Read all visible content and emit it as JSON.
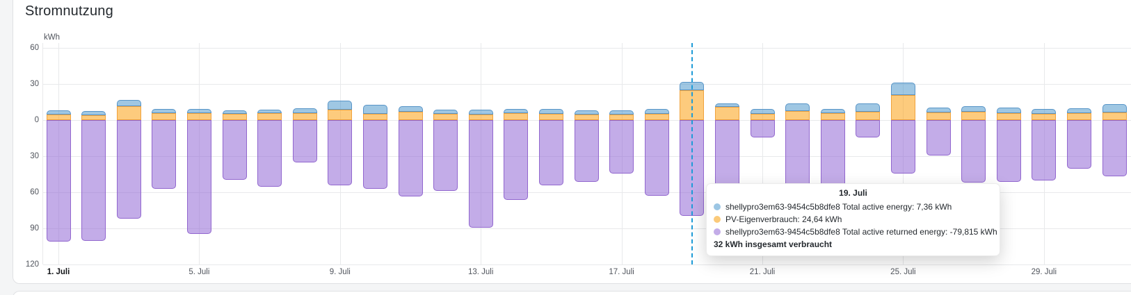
{
  "panel": {
    "title": "Stromnutzung"
  },
  "colors": {
    "page_background": "#f4f5f6",
    "panel_background": "#ffffff",
    "grid": "#e8e9eb",
    "crosshair": "#1e9bd7",
    "series_blue_fill": "#9fc7e3",
    "series_blue_border": "#5794c7",
    "series_orange_fill": "#fdcb7d",
    "series_orange_border": "#f0a23c",
    "series_purple_fill": "#c3ace8",
    "series_purple_border": "#9166ce"
  },
  "chart_data": {
    "type": "bar",
    "stacked": true,
    "title": "Stromnutzung",
    "ylabel": "kWh",
    "ylim": [
      -120,
      60
    ],
    "grid": true,
    "legend_position": "tooltip-only",
    "y_axis": {
      "unit": "kWh",
      "ticks": [
        60,
        30,
        0,
        -30,
        -60,
        -90,
        -120
      ],
      "tick_labels": [
        "60",
        "30",
        "0",
        "30",
        "60",
        "90",
        "120"
      ]
    },
    "x_axis": {
      "tick_days": [
        1,
        5,
        9,
        13,
        17,
        21,
        25,
        29
      ],
      "tick_labels": [
        "1. Juli",
        "5. Juli",
        "9. Juli",
        "13. Juli",
        "17. Juli",
        "21. Juli",
        "25. Juli",
        "29. Juli"
      ],
      "bold_ticks": [
        1
      ]
    },
    "categories": [
      "1. Juli",
      "2. Juli",
      "3. Juli",
      "4. Juli",
      "5. Juli",
      "6. Juli",
      "7. Juli",
      "8. Juli",
      "9. Juli",
      "10. Juli",
      "11. Juli",
      "12. Juli",
      "13. Juli",
      "14. Juli",
      "15. Juli",
      "16. Juli",
      "17. Juli",
      "18. Juli",
      "19. Juli",
      "20. Juli",
      "21. Juli",
      "22. Juli",
      "23. Juli",
      "24. Juli",
      "25. Juli",
      "26. Juli",
      "27. Juli",
      "28. Juli",
      "29. Juli",
      "30. Juli",
      "31. Juli"
    ],
    "series": [
      {
        "name": "shellypro3em63-9454c5b8dfe8 Total active energy",
        "unit": "kWh",
        "values": [
          3.5,
          3.5,
          4.8,
          3.5,
          3.5,
          2.9,
          2.9,
          3.9,
          7.7,
          7.9,
          4.5,
          3.8,
          4.1,
          3.8,
          3.9,
          3.5,
          3.5,
          4.2,
          7.36,
          2.9,
          4.4,
          6.4,
          3.5,
          6.8,
          10.6,
          3.9,
          4.3,
          4.8,
          4.1,
          4.2,
          6.8
        ]
      },
      {
        "name": "PV-Eigenverbrauch",
        "unit": "kWh",
        "values": [
          4.4,
          4.0,
          11.7,
          5.6,
          5.9,
          5.0,
          5.6,
          5.9,
          8.5,
          5.0,
          6.9,
          5.0,
          4.4,
          5.6,
          5.2,
          4.4,
          4.4,
          5.2,
          24.64,
          11.0,
          5.0,
          7.5,
          5.6,
          6.9,
          20.6,
          6.5,
          7.1,
          5.6,
          5.0,
          5.6,
          6.5
        ]
      },
      {
        "name": "shellypro3em63-9454c5b8dfe8 Total active returned energy",
        "unit": "kWh",
        "values": [
          -101,
          -100.6,
          -81.9,
          -56.9,
          -94.8,
          -49.6,
          -55.6,
          -35.4,
          -54.4,
          -56.9,
          -63.3,
          -58.9,
          -89.6,
          -66.5,
          -54.1,
          -51.2,
          -44.5,
          -62.7,
          -79.815,
          -56,
          -14.6,
          -58,
          -56,
          -14.6,
          -44.4,
          -29.6,
          -52.1,
          -51.2,
          -50.2,
          -40.2,
          -46.9
        ]
      }
    ]
  },
  "tooltip": {
    "hover_day": 19,
    "title": "19. Juli",
    "rows": [
      {
        "series": "shellypro3em63-9454c5b8dfe8 Total active energy",
        "value": "7,36 kWh",
        "color": "#9cc6e4"
      },
      {
        "series": "PV-Eigenverbrauch",
        "value": "24,64 kWh",
        "color": "#fbca7a"
      },
      {
        "series": "shellypro3em63-9454c5b8dfe8 Total active returned energy",
        "value": "-79,815 kWh",
        "color": "#c3ace8"
      }
    ],
    "footer": "32 kWh insgesamt verbraucht"
  }
}
